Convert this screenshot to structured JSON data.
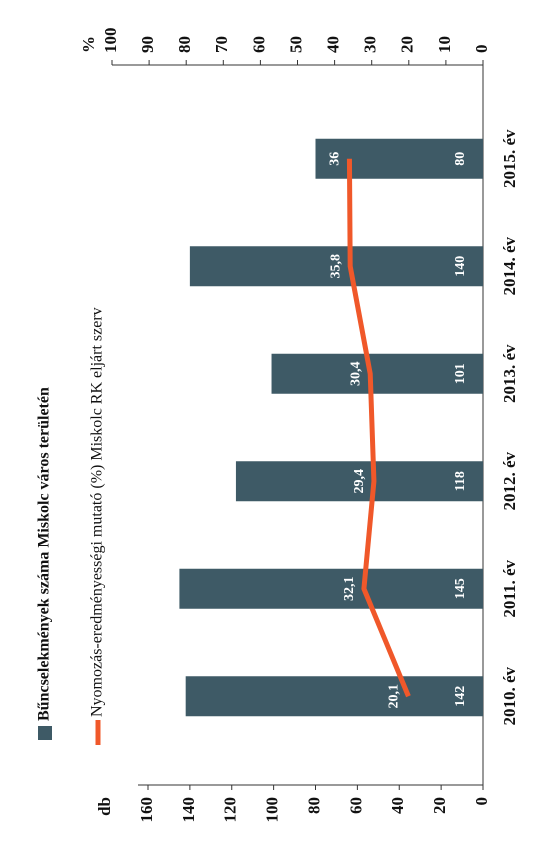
{
  "chart_data": {
    "type": "bar-line",
    "legend": [
      "Bűncselekmények száma Miskolc város területén",
      "Nyomozás-eredményességi mutató (%) Miskolc RK eljárt szerv"
    ],
    "ylabel": "db",
    "y2label": "%",
    "categories": [
      "2010. év",
      "2011. év",
      "2012. év",
      "2013. év",
      "2014. év",
      "2015. év"
    ],
    "series": [
      {
        "name": "Bűncselekmények száma Miskolc város területén",
        "type": "bar",
        "color": "#3e5a66",
        "values": [
          142,
          145,
          118,
          101,
          140,
          80
        ]
      },
      {
        "name": "Nyomozás-eredményességi mutató (%) Miskolc RK eljárt szerv",
        "type": "line",
        "axis": "y2",
        "color": "#f0582a",
        "values": [
          20.1,
          32.1,
          29.4,
          30.4,
          35.8,
          36
        ],
        "value_labels": [
          "20,1",
          "32,1",
          "29,4",
          "30,4",
          "35,8",
          "36"
        ]
      }
    ],
    "ylim": [
      0,
      160
    ],
    "yticks": [
      0,
      20,
      40,
      60,
      80,
      100,
      120,
      140,
      160
    ],
    "y2lim": [
      0,
      100
    ],
    "y2ticks": [
      0,
      10,
      20,
      30,
      40,
      50,
      60,
      70,
      80,
      90,
      100
    ]
  }
}
